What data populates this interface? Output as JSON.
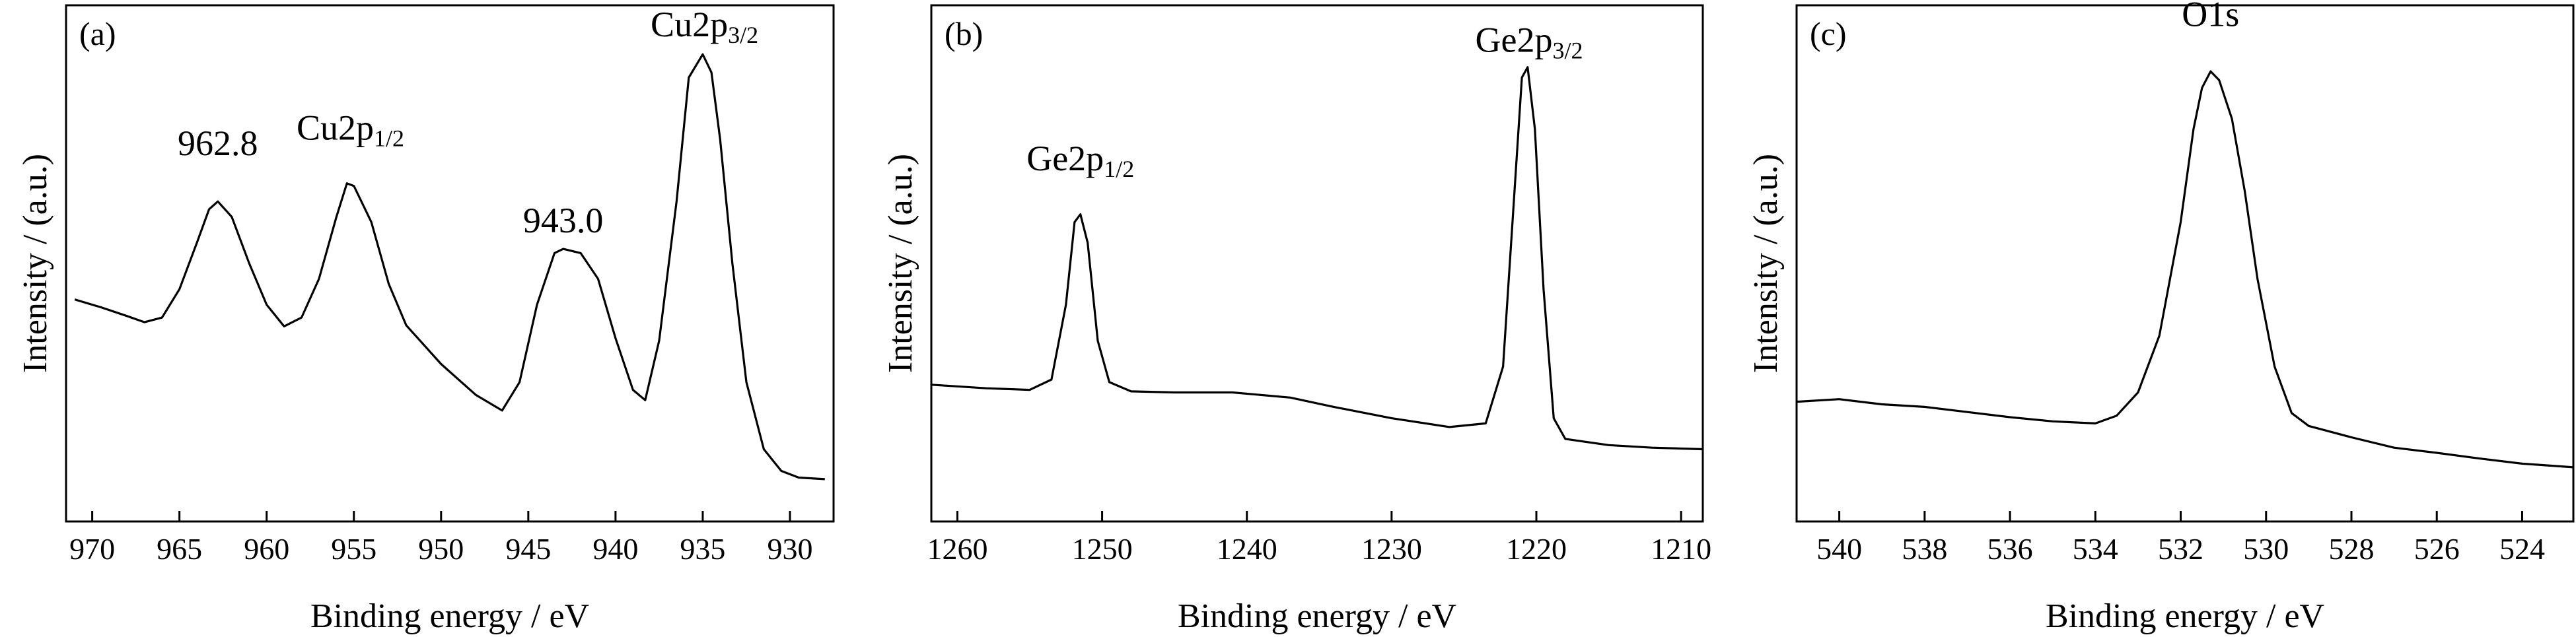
{
  "chart_data": [
    {
      "type": "line",
      "panel_label": "(a)",
      "xlabel": "Binding energy / eV",
      "ylabel": "Intensity / (a.u.)",
      "x_reversed": true,
      "xlim": [
        971.5,
        927.5
      ],
      "ylim": [
        0,
        1
      ],
      "y_ticks_shown": false,
      "xticks": [
        970,
        965,
        960,
        955,
        950,
        945,
        940,
        935,
        930
      ],
      "annotations": [
        {
          "text": "962.8",
          "x": 962.8,
          "y": 0.71
        },
        {
          "text": "Cu2p",
          "sub": "1/2",
          "x": 955.2,
          "y": 0.74
        },
        {
          "text": "943.0",
          "x": 943.0,
          "y": 0.56
        },
        {
          "text": "Cu2p",
          "sub": "3/2",
          "x": 934.9,
          "y": 0.94
        }
      ],
      "series": [
        {
          "values": [
            [
              971.0,
              0.43
            ],
            [
              969.5,
              0.415
            ],
            [
              968.0,
              0.398
            ],
            [
              967.0,
              0.386
            ],
            [
              966.0,
              0.395
            ],
            [
              965.0,
              0.45
            ],
            [
              964.0,
              0.54
            ],
            [
              963.3,
              0.605
            ],
            [
              962.8,
              0.62
            ],
            [
              962.0,
              0.59
            ],
            [
              961.0,
              0.5
            ],
            [
              960.0,
              0.42
            ],
            [
              959.0,
              0.378
            ],
            [
              958.0,
              0.395
            ],
            [
              957.0,
              0.47
            ],
            [
              956.0,
              0.59
            ],
            [
              955.4,
              0.655
            ],
            [
              955.0,
              0.65
            ],
            [
              954.0,
              0.58
            ],
            [
              953.0,
              0.46
            ],
            [
              952.0,
              0.38
            ],
            [
              950.0,
              0.305
            ],
            [
              948.0,
              0.245
            ],
            [
              946.5,
              0.215
            ],
            [
              945.5,
              0.27
            ],
            [
              944.5,
              0.42
            ],
            [
              943.5,
              0.52
            ],
            [
              943.0,
              0.528
            ],
            [
              942.0,
              0.52
            ],
            [
              941.0,
              0.47
            ],
            [
              940.0,
              0.355
            ],
            [
              939.0,
              0.255
            ],
            [
              938.3,
              0.235
            ],
            [
              937.5,
              0.35
            ],
            [
              936.5,
              0.62
            ],
            [
              935.8,
              0.86
            ],
            [
              935.0,
              0.905
            ],
            [
              934.5,
              0.87
            ],
            [
              934.0,
              0.74
            ],
            [
              933.3,
              0.5
            ],
            [
              932.5,
              0.27
            ],
            [
              931.5,
              0.14
            ],
            [
              930.5,
              0.098
            ],
            [
              929.5,
              0.085
            ],
            [
              928.0,
              0.082
            ]
          ]
        }
      ]
    },
    {
      "type": "line",
      "panel_label": "(b)",
      "xlabel": "Binding energy / eV",
      "ylabel": "Intensity / (a.u.)",
      "x_reversed": true,
      "xlim": [
        1261.8,
        1208.5
      ],
      "ylim": [
        0,
        1
      ],
      "y_ticks_shown": false,
      "xticks": [
        1260,
        1250,
        1240,
        1230,
        1220,
        1210
      ],
      "annotations": [
        {
          "text": "Ge2p",
          "sub": "1/2",
          "x": 1251.5,
          "y": 0.68
        },
        {
          "text": "Ge2p",
          "sub": "3/2",
          "x": 1220.5,
          "y": 0.91
        }
      ],
      "series": [
        {
          "values": [
            [
              1261.8,
              0.265
            ],
            [
              1258.0,
              0.258
            ],
            [
              1255.0,
              0.255
            ],
            [
              1253.5,
              0.275
            ],
            [
              1252.5,
              0.42
            ],
            [
              1251.9,
              0.58
            ],
            [
              1251.5,
              0.595
            ],
            [
              1251.0,
              0.54
            ],
            [
              1250.3,
              0.35
            ],
            [
              1249.5,
              0.27
            ],
            [
              1248.0,
              0.252
            ],
            [
              1245.0,
              0.25
            ],
            [
              1241.0,
              0.25
            ],
            [
              1237.0,
              0.24
            ],
            [
              1234.0,
              0.222
            ],
            [
              1230.0,
              0.2
            ],
            [
              1226.0,
              0.183
            ],
            [
              1223.5,
              0.19
            ],
            [
              1222.3,
              0.3
            ],
            [
              1221.6,
              0.6
            ],
            [
              1221.0,
              0.86
            ],
            [
              1220.6,
              0.88
            ],
            [
              1220.1,
              0.76
            ],
            [
              1219.5,
              0.45
            ],
            [
              1218.8,
              0.2
            ],
            [
              1218.0,
              0.16
            ],
            [
              1215.0,
              0.148
            ],
            [
              1212.0,
              0.143
            ],
            [
              1208.5,
              0.14
            ]
          ]
        }
      ]
    },
    {
      "type": "line",
      "panel_label": "(c)",
      "xlabel": "Binding energy / eV",
      "ylabel": "Intensity / (a.u.)",
      "x_reversed": true,
      "xlim": [
        541.0,
        522.8
      ],
      "ylim": [
        0,
        1
      ],
      "y_ticks_shown": false,
      "xticks": [
        540,
        538,
        536,
        534,
        532,
        530,
        528,
        526,
        524
      ],
      "annotations": [
        {
          "text": "O1s",
          "x": 531.3,
          "y": 0.96
        }
      ],
      "series": [
        {
          "values": [
            [
              541.0,
              0.232
            ],
            [
              540.0,
              0.237
            ],
            [
              539.0,
              0.227
            ],
            [
              538.0,
              0.222
            ],
            [
              537.0,
              0.212
            ],
            [
              536.0,
              0.202
            ],
            [
              535.0,
              0.194
            ],
            [
              534.0,
              0.19
            ],
            [
              533.5,
              0.205
            ],
            [
              533.0,
              0.25
            ],
            [
              532.5,
              0.36
            ],
            [
              532.0,
              0.58
            ],
            [
              531.7,
              0.76
            ],
            [
              531.5,
              0.84
            ],
            [
              531.3,
              0.872
            ],
            [
              531.1,
              0.855
            ],
            [
              530.8,
              0.78
            ],
            [
              530.5,
              0.64
            ],
            [
              530.2,
              0.47
            ],
            [
              529.8,
              0.3
            ],
            [
              529.4,
              0.21
            ],
            [
              529.0,
              0.185
            ],
            [
              528.0,
              0.163
            ],
            [
              527.0,
              0.143
            ],
            [
              526.0,
              0.133
            ],
            [
              525.0,
              0.122
            ],
            [
              524.0,
              0.112
            ],
            [
              522.8,
              0.105
            ]
          ]
        }
      ]
    }
  ]
}
